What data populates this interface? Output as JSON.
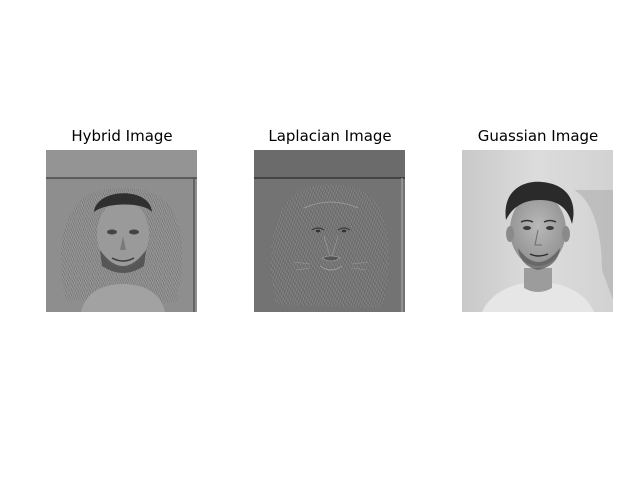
{
  "panels": [
    {
      "title": "Hybrid Image"
    },
    {
      "title": "Laplacian Image"
    },
    {
      "title": "Guassian Image"
    }
  ]
}
